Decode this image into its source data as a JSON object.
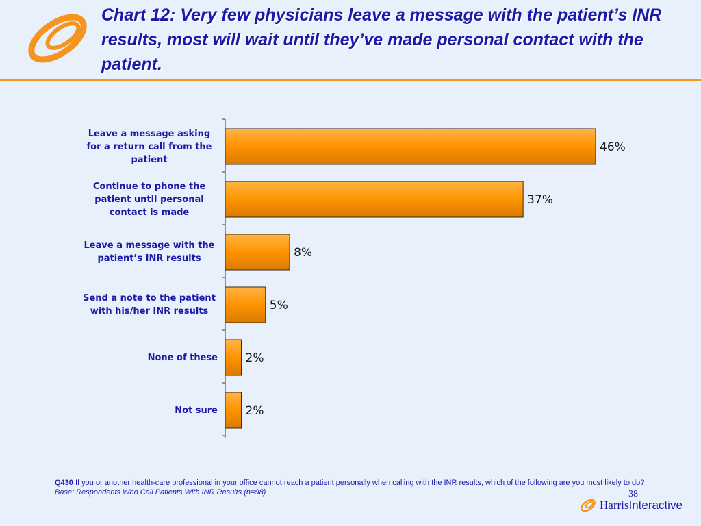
{
  "slide": {
    "title": "Chart 12:  Very few physicians leave a message with the patient’s INR results, most will wait until they’ve made personal contact with the patient.",
    "page_number": "38",
    "brand": {
      "name_part1": "Harris",
      "name_part2": "Interactive"
    },
    "footnote": {
      "question_id": "Q430",
      "question_text": "If you or another health-care professional in your office cannot reach a patient personally when calling with the INR results, which of the following are you most likely to do?",
      "base": "Base:  Respondents Who Call Patients With INR Results (n=98)"
    },
    "colors": {
      "accent": "#f7941d",
      "bar_fill": "#ff9400",
      "title": "#1a1aa8",
      "background": "#e8f0fb"
    }
  },
  "chart_data": {
    "type": "bar",
    "orientation": "horizontal",
    "categories": [
      "Leave a message asking for a return call from the patient",
      "Continue to phone the patient until personal contact is made",
      "Leave a message with the patient’s INR results",
      "Send a note to the patient with his/her INR results",
      "None of these",
      "Not sure"
    ],
    "values": [
      46,
      37,
      8,
      5,
      2,
      2
    ],
    "data_labels": [
      "46%",
      "37%",
      "8%",
      "5%",
      "2%",
      "2%"
    ],
    "unit": "%",
    "xlim": [
      0,
      50
    ],
    "grid": false,
    "legend": "none"
  }
}
